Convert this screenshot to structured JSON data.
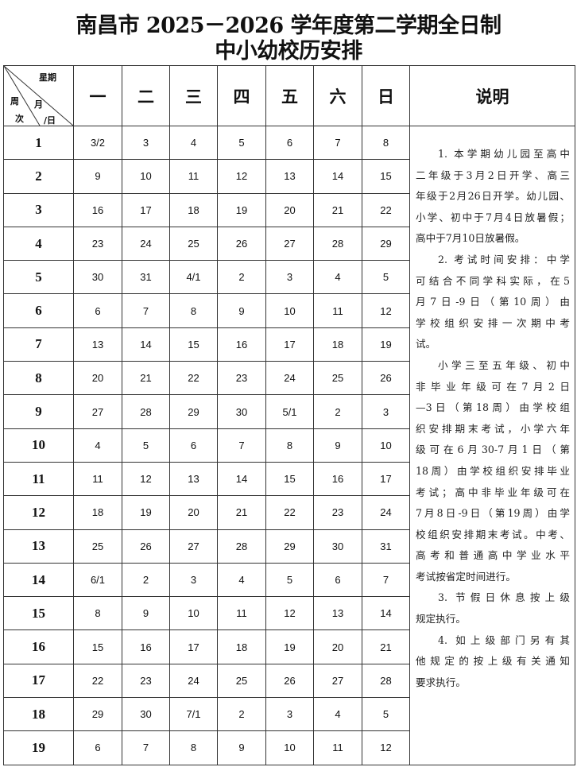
{
  "title_line1": "南昌市 2025－2026 学年度第二学期全日制",
  "title_line2": "中小幼校历安排",
  "corner": {
    "weekday": "星期",
    "month": "月",
    "day": "/日",
    "week1": "周",
    "week2": "次"
  },
  "weekdays": [
    "一",
    "二",
    "三",
    "四",
    "五",
    "六",
    "日"
  ],
  "notes_header": "说明",
  "weeks": [
    {
      "week": "1",
      "days": [
        "3/2",
        "3",
        "4",
        "5",
        "6",
        "7",
        "8"
      ]
    },
    {
      "week": "2",
      "days": [
        "9",
        "10",
        "11",
        "12",
        "13",
        "14",
        "15"
      ]
    },
    {
      "week": "3",
      "days": [
        "16",
        "17",
        "18",
        "19",
        "20",
        "21",
        "22"
      ]
    },
    {
      "week": "4",
      "days": [
        "23",
        "24",
        "25",
        "26",
        "27",
        "28",
        "29"
      ]
    },
    {
      "week": "5",
      "days": [
        "30",
        "31",
        "4/1",
        "2",
        "3",
        "4",
        "5"
      ]
    },
    {
      "week": "6",
      "days": [
        "6",
        "7",
        "8",
        "9",
        "10",
        "11",
        "12"
      ]
    },
    {
      "week": "7",
      "days": [
        "13",
        "14",
        "15",
        "16",
        "17",
        "18",
        "19"
      ]
    },
    {
      "week": "8",
      "days": [
        "20",
        "21",
        "22",
        "23",
        "24",
        "25",
        "26"
      ]
    },
    {
      "week": "9",
      "days": [
        "27",
        "28",
        "29",
        "30",
        "5/1",
        "2",
        "3"
      ]
    },
    {
      "week": "10",
      "days": [
        "4",
        "5",
        "6",
        "7",
        "8",
        "9",
        "10"
      ]
    },
    {
      "week": "11",
      "days": [
        "11",
        "12",
        "13",
        "14",
        "15",
        "16",
        "17"
      ]
    },
    {
      "week": "12",
      "days": [
        "18",
        "19",
        "20",
        "21",
        "22",
        "23",
        "24"
      ]
    },
    {
      "week": "13",
      "days": [
        "25",
        "26",
        "27",
        "28",
        "29",
        "30",
        "31"
      ]
    },
    {
      "week": "14",
      "days": [
        "6/1",
        "2",
        "3",
        "4",
        "5",
        "6",
        "7"
      ]
    },
    {
      "week": "15",
      "days": [
        "8",
        "9",
        "10",
        "11",
        "12",
        "13",
        "14"
      ]
    },
    {
      "week": "16",
      "days": [
        "15",
        "16",
        "17",
        "18",
        "19",
        "20",
        "21"
      ]
    },
    {
      "week": "17",
      "days": [
        "22",
        "23",
        "24",
        "25",
        "26",
        "27",
        "28"
      ]
    },
    {
      "week": "18",
      "days": [
        "29",
        "30",
        "7/1",
        "2",
        "3",
        "4",
        "5"
      ]
    },
    {
      "week": "19",
      "days": [
        "6",
        "7",
        "8",
        "9",
        "10",
        "11",
        "12"
      ]
    }
  ],
  "notes": [
    [
      "1. 本学期幼儿园至高中",
      "二年级于3月2日开学、高三",
      "年级于2月26日开学。幼儿园、",
      "小学、初中于7月4日放暑假；",
      "高中于7月10日放暑假。"
    ],
    [
      "2. 考试时间安排：中学",
      "可结合不同学科实际，在5",
      "月7日-9日（第10周）由",
      "学校组织安排一次期中考",
      "试。"
    ],
    [
      "小学三至五年级、初中",
      "非毕业年级可在7月2日",
      "—3日（第18周）由学校组",
      "织安排期末考试，小学六年",
      "级可在6月30-7月1日（第",
      "18周）由学校组织安排毕业",
      "考试；高中非毕业年级可在",
      "7月8日-9日（第19周）由学",
      "校组织安排期末考试。中考、",
      "高考和普通高中学业水平",
      "考试按省定时间进行。"
    ],
    [
      "3. 节假日休息按上级",
      "规定执行。"
    ],
    [
      "4. 如上级部门另有其",
      "他规定的按上级有关通知",
      "要求执行。"
    ]
  ]
}
